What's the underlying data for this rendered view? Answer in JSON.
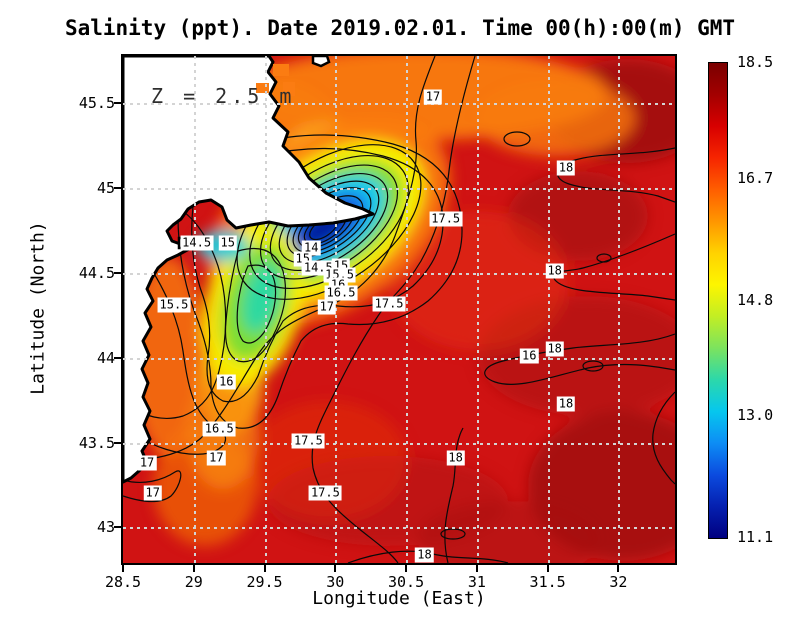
{
  "title": "Salinity (ppt). Date 2019.02.01. Time 00(h):00(m) GMT",
  "annotation": "Z = 2.5 m",
  "axes": {
    "xlabel": "Longitude (East)",
    "ylabel": "Latitude (North)"
  },
  "palette": {
    "sea_background_red": "#d01313",
    "plume_core_blue": "#001e9a",
    "coast_line": "#000000",
    "land_fill": "#ffffff",
    "grid_dash": "#d4d4d4"
  },
  "chart_data": {
    "type": "heatmap",
    "subtype": "filled-contour-map",
    "title": "Salinity (ppt). Date 2019.02.01. Time 00(h):00(m) GMT",
    "xlabel": "Longitude (East)",
    "ylabel": "Latitude (North)",
    "xlim": [
      28.5,
      32.4
    ],
    "ylim": [
      42.79,
      45.78
    ],
    "x_ticks": [
      28.5,
      29,
      29.5,
      30,
      30.5,
      31,
      31.5,
      32
    ],
    "x_tick_labels": [
      "28.5",
      "29",
      "29.5",
      "30",
      "30.5",
      "31",
      "31.5",
      "32"
    ],
    "y_ticks": [
      45.5,
      45,
      44.5,
      44,
      43.5,
      43
    ],
    "y_tick_labels": [
      "45.5",
      "45",
      "44.5",
      "44",
      "43.5",
      "43"
    ],
    "grid": true,
    "annotation": "Z = 2.5 m",
    "field_description": "Sea-surface salinity at 2.5 m depth; background sea 17.5-18.5 ppt (red), low-salinity river plume down to ~11-12 ppt (dark blue) centered near 29.9E 44.7N, fresh tongue (~14-16 ppt) extending southwest along the coast; land shown white in the northwest",
    "colorbar": {
      "min": 11.1,
      "max": 18.5,
      "tick_labels": [
        "18.5",
        "16.7",
        "14.8",
        "13.0",
        "11.1"
      ],
      "colormap": "jet",
      "stops": [
        "#7a0000",
        "#a30000",
        "#d80000",
        "#f62500",
        "#ff5e00",
        "#ff9600",
        "#ffd200",
        "#fdf500",
        "#c2ee24",
        "#7ce35e",
        "#2cd8aa",
        "#06c7ee",
        "#0d8df5",
        "#0b4bdf",
        "#0520b0",
        "#000080"
      ]
    },
    "contour_labels": [
      {
        "value": "14.5",
        "lon": 29.02,
        "lat": 44.68
      },
      {
        "value": "15",
        "lon": 29.24,
        "lat": 44.68
      },
      {
        "value": "14",
        "lon": 29.83,
        "lat": 44.65
      },
      {
        "value": "15",
        "lon": 29.77,
        "lat": 44.58
      },
      {
        "value": "14.5",
        "lon": 29.88,
        "lat": 44.53
      },
      {
        "value": "15",
        "lon": 30.04,
        "lat": 44.54
      },
      {
        "value": "15.5",
        "lon": 30.03,
        "lat": 44.49
      },
      {
        "value": "16",
        "lon": 30.02,
        "lat": 44.43
      },
      {
        "value": "16.5",
        "lon": 30.04,
        "lat": 44.38
      },
      {
        "value": "17",
        "lon": 29.94,
        "lat": 44.3
      },
      {
        "value": "17.5",
        "lon": 30.38,
        "lat": 44.32
      },
      {
        "value": "15.5",
        "lon": 28.86,
        "lat": 44.31
      },
      {
        "value": "16",
        "lon": 29.23,
        "lat": 43.86
      },
      {
        "value": "16.5",
        "lon": 29.18,
        "lat": 43.58
      },
      {
        "value": "17",
        "lon": 30.69,
        "lat": 45.54
      },
      {
        "value": "18",
        "lon": 31.63,
        "lat": 45.12
      },
      {
        "value": "17.5",
        "lon": 30.78,
        "lat": 44.82
      },
      {
        "value": "18",
        "lon": 31.55,
        "lat": 44.51
      },
      {
        "value": "16",
        "lon": 31.37,
        "lat": 44.01
      },
      {
        "value": "18",
        "lon": 31.55,
        "lat": 44.05
      },
      {
        "value": "18",
        "lon": 31.63,
        "lat": 43.73
      },
      {
        "value": "18",
        "lon": 30.85,
        "lat": 43.41
      },
      {
        "value": "17.5",
        "lon": 29.81,
        "lat": 43.51
      },
      {
        "value": "17.5",
        "lon": 29.93,
        "lat": 43.2
      },
      {
        "value": "17",
        "lon": 29.16,
        "lat": 43.41
      },
      {
        "value": "17",
        "lon": 28.67,
        "lat": 43.38
      },
      {
        "value": "17",
        "lon": 28.71,
        "lat": 43.2
      },
      {
        "value": "18",
        "lon": 30.63,
        "lat": 42.84
      }
    ]
  }
}
